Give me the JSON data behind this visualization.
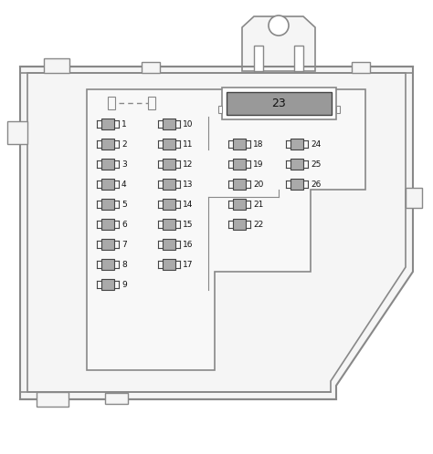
{
  "bg_color": "#f0f0f0",
  "outer_color": "#888888",
  "inner_color": "#888888",
  "fuse_fill": "#aaaaaa",
  "fuse_outline": "#444444",
  "relay_fill": "#999999",
  "relay_outline": "#444444",
  "text_color": "#111111",
  "label_fontsize": 6.5,
  "relay_label": "23",
  "relay_fontsize": 9,
  "col1_fuses": [
    "1",
    "2",
    "3",
    "4",
    "5",
    "6",
    "7",
    "8",
    "9"
  ],
  "col2_fuses": [
    "10",
    "11",
    "12",
    "13",
    "14",
    "15",
    "16",
    "17"
  ],
  "col3_fuses": [
    "18",
    "19",
    "20",
    "21",
    "22"
  ],
  "col4_fuses": [
    "24",
    "25",
    "26"
  ]
}
